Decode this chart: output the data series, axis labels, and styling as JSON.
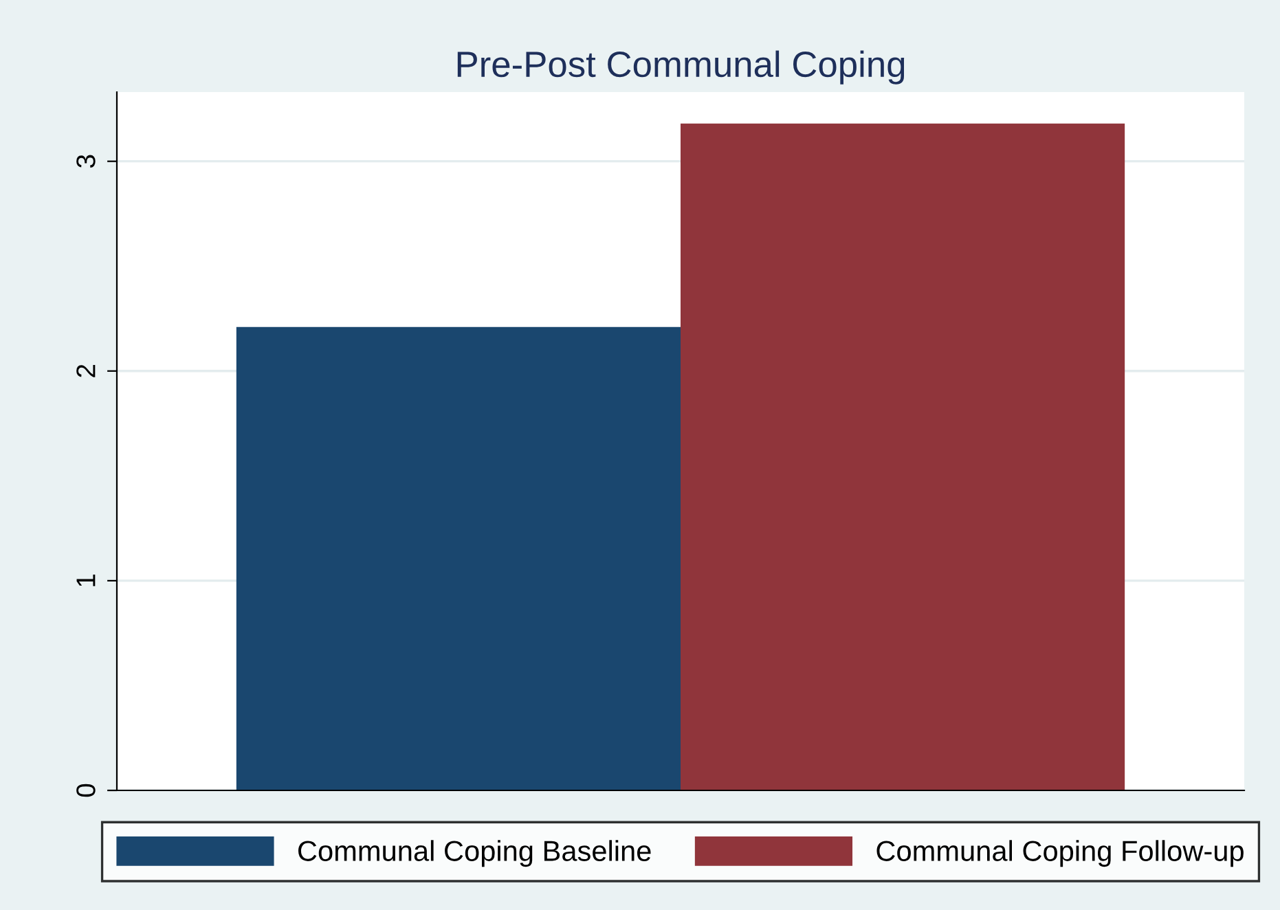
{
  "chart_data": {
    "type": "bar",
    "title": "Pre-Post Communal Coping",
    "categories": [
      null
    ],
    "series": [
      {
        "name": "Communal Coping Baseline",
        "color": "#1a476f",
        "values": [
          2.21
        ]
      },
      {
        "name": "Communal Coping Follow-up",
        "color": "#90353b",
        "values": [
          3.18
        ]
      }
    ],
    "ylim": [
      0,
      3.33
    ],
    "yticks": [
      0,
      1,
      2,
      3
    ],
    "grid": "y",
    "legend": "bottom"
  }
}
